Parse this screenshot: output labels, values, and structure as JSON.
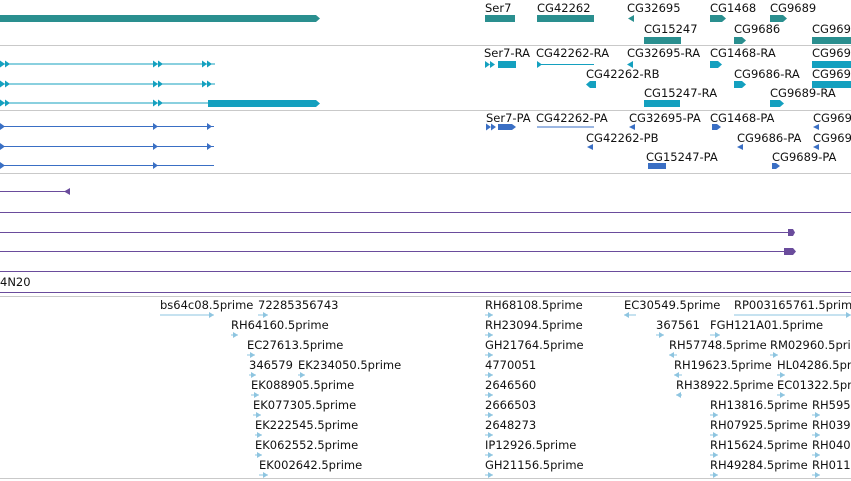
{
  "colors": {
    "gene": "#2a8f8f",
    "mrna": "#14a0bf",
    "protein": "#3a6fc4",
    "alignment": "#6a4c9c",
    "est": "#8ec5e0",
    "separator": "#c9c9c9"
  },
  "gene_track": {
    "labels": [
      "Ser7",
      "CG42262",
      "CG32695",
      "CG1468",
      "CG9689",
      "CG15247",
      "CG9686",
      "CG969"
    ]
  },
  "mrna_track": {
    "labels": [
      "Ser7-RA",
      "CG42262-RA",
      "CG32695-RA",
      "CG1468-RA",
      "CG969",
      "CG42262-RB",
      "CG9686-RA",
      "CG969",
      "CG15247-RA",
      "CG9689-RA"
    ]
  },
  "protein_track": {
    "labels": [
      "Ser7-PA",
      "CG42262-PA",
      "CG32695-PA",
      "CG1468-PA",
      "CG969",
      "CG42262-PB",
      "CG9686-PA",
      "CG969",
      "CG15247-PA",
      "CG9689-PA"
    ]
  },
  "alignment_track": {
    "labels": [
      "4N20"
    ]
  },
  "est_track": {
    "labels": [
      "bs64c08.5prime",
      "72285356743",
      "RH64160.5prime",
      "EC27613.5prime",
      "346579",
      "EK234050.5prime",
      "EK088905.5prime",
      "EK077305.5prime",
      "EK222545.5prime",
      "EK062552.5prime",
      "EK002642.5prime",
      "RH68108.5prime",
      "RH23094.5prime",
      "GH21764.5prime",
      "4770051",
      "2646560",
      "2666503",
      "2648273",
      "IP12926.5prime",
      "GH21156.5prime",
      "EC30549.5prime",
      "RP003165761.5prime",
      "367561",
      "FGH121A01.5prime",
      "RH57748.5prime",
      "RM02960.5prime",
      "RH19623.5prime",
      "HL04286.5prime",
      "RH38922.5prime",
      "EC01322.5prime",
      "RH13816.5prime",
      "RH595",
      "RH07925.5prime",
      "RH039",
      "RH15624.5prime",
      "RH040",
      "RH49284.5prime",
      "RH011"
    ]
  }
}
